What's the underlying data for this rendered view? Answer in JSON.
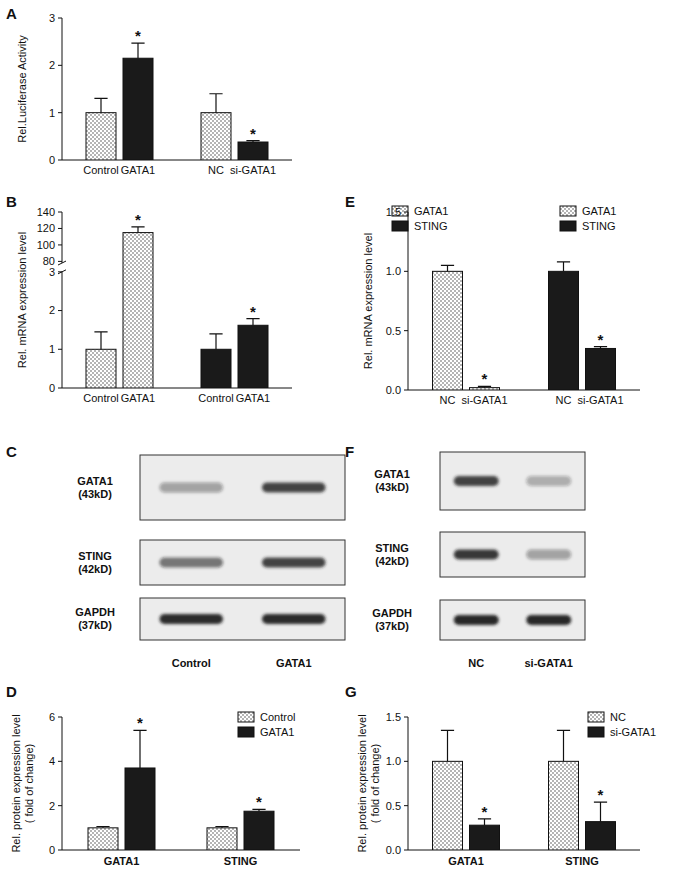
{
  "chart_data": [
    {
      "type": "bar",
      "title": "A",
      "ylabel": "Rel.Luciferase Activity",
      "ylim": [
        0,
        3
      ],
      "yticks": [
        0,
        1,
        2,
        3
      ],
      "series": [
        {
          "categories": [
            "Control",
            "GATA1"
          ],
          "values": [
            1.0,
            2.15
          ],
          "errors": [
            0.3,
            0.32
          ],
          "colors": [
            "#ffffff",
            "#1a1a1a"
          ],
          "significance": [
            null,
            "*"
          ]
        },
        {
          "categories": [
            "NC",
            "si-GATA1"
          ],
          "values": [
            1.0,
            0.38
          ],
          "errors": [
            0.4,
            0.03
          ],
          "colors": [
            "#ffffff",
            "#1a1a1a"
          ],
          "significance": [
            null,
            "*"
          ]
        }
      ]
    },
    {
      "type": "bar",
      "title": "B",
      "ylabel": "Rel. mRNA expression level",
      "ylim": [
        0,
        140
      ],
      "y_break": [
        3,
        78
      ],
      "yticks": [
        0,
        1,
        2,
        3,
        80,
        100,
        120,
        140
      ],
      "legend": "upper right",
      "series": [
        {
          "name": "GATA1",
          "color": "#ffffff",
          "categories": [
            "Control",
            "GATA1"
          ],
          "values": [
            1.0,
            115
          ],
          "errors": [
            0.45,
            7
          ],
          "significance": [
            null,
            "*"
          ]
        },
        {
          "name": "STING",
          "color": "#1a1a1a",
          "categories": [
            "Control",
            "GATA1"
          ],
          "values": [
            1.0,
            1.62
          ],
          "errors": [
            0.4,
            0.17
          ],
          "significance": [
            null,
            "*"
          ]
        }
      ]
    },
    {
      "type": "bar",
      "title": "E",
      "ylabel": "Rel. mRNA expression level",
      "ylim": [
        0,
        1.5
      ],
      "yticks": [
        {
          "value": 0,
          "label": "0.0"
        },
        {
          "value": 0.5,
          "label": "0.5"
        },
        {
          "value": 1,
          "label": "1.0"
        },
        {
          "value": 1.5,
          "label": "1.5"
        }
      ],
      "legend": "upper right",
      "series": [
        {
          "name": "GATA1",
          "color": "#ffffff",
          "categories": [
            "NC",
            "si-GATA1"
          ],
          "values": [
            1.0,
            0.02
          ],
          "errors": [
            0.05,
            0.01
          ],
          "significance": [
            null,
            "*"
          ]
        },
        {
          "name": "STING",
          "color": "#1a1a1a",
          "categories": [
            "NC",
            "si-GATA1"
          ],
          "values": [
            1.0,
            0.35
          ],
          "errors": [
            0.08,
            0.015
          ],
          "significance": [
            null,
            "*"
          ]
        }
      ]
    },
    {
      "type": "blot",
      "title": "C",
      "categories": [
        "Control",
        "GATA1"
      ],
      "series": [
        {
          "name": "GATA1 (43kD)",
          "values": [
            0.35,
            0.8
          ]
        },
        {
          "name": "STING (42kD)",
          "values": [
            0.55,
            0.8
          ]
        },
        {
          "name": "GAPDH (37kD)",
          "values": [
            0.9,
            0.9
          ]
        }
      ]
    },
    {
      "type": "blot",
      "title": "F",
      "categories": [
        "NC",
        "si-GATA1"
      ],
      "series": [
        {
          "name": "GATA1 (43kD)",
          "values": [
            0.8,
            0.3
          ]
        },
        {
          "name": "STING (42kD)",
          "values": [
            0.85,
            0.35
          ]
        },
        {
          "name": "GAPDH (37kD)",
          "values": [
            0.95,
            0.95
          ]
        }
      ]
    },
    {
      "type": "bar",
      "title": "D",
      "ylabel": [
        "Rel. protein expression level",
        "( fold of change)"
      ],
      "ylim": [
        0,
        6
      ],
      "yticks": [
        0,
        2,
        4,
        6
      ],
      "legend": "upper right",
      "categories": [
        "GATA1",
        "STING"
      ],
      "series": [
        {
          "name": "Control",
          "color": "#ffffff",
          "values": [
            1.0,
            1.0
          ],
          "errors": [
            0.06,
            0.06
          ],
          "significance": [
            null,
            null
          ]
        },
        {
          "name": "GATA1",
          "color": "#1a1a1a",
          "values": [
            3.7,
            1.75
          ],
          "errors": [
            1.7,
            0.08
          ],
          "significance": [
            "*",
            "*"
          ]
        }
      ]
    },
    {
      "type": "bar",
      "title": "G",
      "ylabel": [
        "Rel. protein expression level",
        "( fold of change)"
      ],
      "ylim": [
        0,
        1.5
      ],
      "yticks": [
        {
          "value": 0,
          "label": "0.0"
        },
        {
          "value": 0.5,
          "label": "0.5"
        },
        {
          "value": 1,
          "label": "1.0"
        },
        {
          "value": 1.5,
          "label": "1.5"
        }
      ],
      "legend": "upper right",
      "categories": [
        "GATA1",
        "STING"
      ],
      "series": [
        {
          "name": "NC",
          "color": "#ffffff",
          "values": [
            1.0,
            1.0
          ],
          "errors": [
            0.35,
            0.35
          ],
          "significance": [
            null,
            null
          ]
        },
        {
          "name": "si-GATA1",
          "color": "#1a1a1a",
          "values": [
            0.28,
            0.32
          ],
          "errors": [
            0.07,
            0.22
          ],
          "significance": [
            "*",
            "*"
          ]
        }
      ]
    }
  ]
}
